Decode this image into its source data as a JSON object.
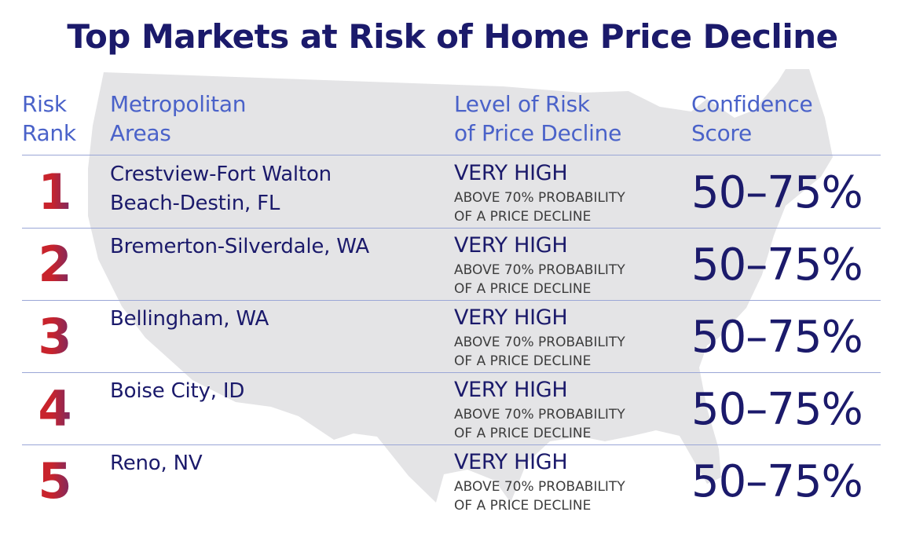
{
  "title": "Top Markets at Risk of Home Price Decline",
  "headers": {
    "rank": [
      "Risk",
      "Rank"
    ],
    "area": [
      "Metropolitan",
      "Areas"
    ],
    "level": [
      "Level of Risk",
      "of Price Decline"
    ],
    "score": [
      "Confidence",
      "Score"
    ]
  },
  "rows": [
    {
      "rank": "1",
      "area": [
        "Crestview-Fort Walton",
        "Beach-Destin, FL"
      ],
      "level": "VERY HIGH",
      "sub": [
        "ABOVE 70% PROBABILITY",
        "OF A PRICE DECLINE"
      ],
      "score": "50–75%"
    },
    {
      "rank": "2",
      "area": [
        "Bremerton-Silverdale, WA",
        ""
      ],
      "level": "VERY HIGH",
      "sub": [
        "ABOVE 70% PROBABILITY",
        "OF A PRICE DECLINE"
      ],
      "score": "50–75%"
    },
    {
      "rank": "3",
      "area": [
        "Bellingham, WA",
        ""
      ],
      "level": "VERY HIGH",
      "sub": [
        "ABOVE 70% PROBABILITY",
        "OF A PRICE DECLINE"
      ],
      "score": "50–75%"
    },
    {
      "rank": "4",
      "area": [
        "Boise City, ID",
        ""
      ],
      "level": "VERY HIGH",
      "sub": [
        "ABOVE 70% PROBABILITY",
        "OF A PRICE DECLINE"
      ],
      "score": "50–75%"
    },
    {
      "rank": "5",
      "area": [
        "Reno, NV",
        ""
      ],
      "level": "VERY HIGH",
      "sub": [
        "ABOVE 70% PROBABILITY",
        "OF A PRICE DECLINE"
      ],
      "score": "50–75%"
    }
  ],
  "colors": {
    "title": "#1b1a6b",
    "header": "#4a62c9",
    "rank_red": "#c8232c",
    "rank_blue": "#3c2f8f",
    "map_fill": "#e4e4e6",
    "rule": "#9aa6d6"
  },
  "background_graphic": "usa-map-silhouette"
}
